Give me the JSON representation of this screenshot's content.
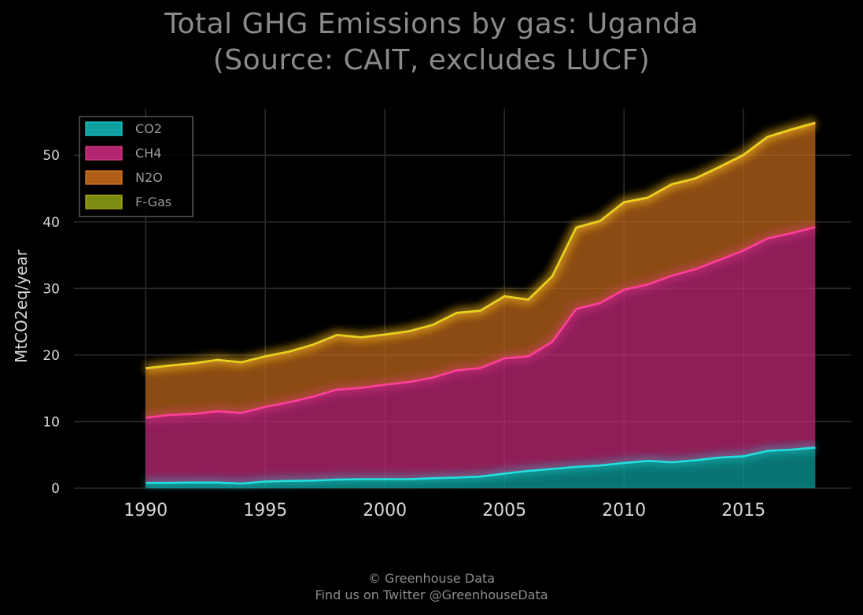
{
  "title": {
    "line1": "Total GHG Emissions by gas: Uganda",
    "line2": "(Source: CAIT, excludes LUCF)"
  },
  "footer": {
    "line1": "© Greenhouse Data",
    "line2": "Find us on Twitter @GreenhouseData"
  },
  "chart_data": {
    "type": "area",
    "stacked": true,
    "title": "Total GHG Emissions by gas: Uganda (Source: CAIT, excludes LUCF)",
    "xlabel": "",
    "ylabel": "MtCO2eq/year",
    "xlim": [
      1987,
      2019.5
    ],
    "ylim": [
      0,
      57
    ],
    "xticks": [
      1990,
      1995,
      2000,
      2005,
      2010,
      2015
    ],
    "yticks": [
      0,
      10,
      20,
      30,
      40,
      50
    ],
    "grid": true,
    "legend_position": "top-left",
    "x": [
      1990,
      1991,
      1992,
      1993,
      1994,
      1995,
      1996,
      1997,
      1998,
      1999,
      2000,
      2001,
      2002,
      2003,
      2004,
      2005,
      2006,
      2007,
      2008,
      2009,
      2010,
      2011,
      2012,
      2013,
      2014,
      2015,
      2016,
      2017,
      2018
    ],
    "series": [
      {
        "name": "CO2",
        "color": "#0e9f9f",
        "values": [
          0.8,
          0.8,
          0.85,
          0.85,
          0.7,
          1.0,
          1.1,
          1.15,
          1.3,
          1.35,
          1.35,
          1.35,
          1.5,
          1.6,
          1.75,
          2.2,
          2.6,
          2.9,
          3.2,
          3.4,
          3.8,
          4.1,
          3.9,
          4.2,
          4.6,
          4.8,
          5.6,
          5.8,
          6.1
        ]
      },
      {
        "name": "CH4",
        "color": "#c62a7a",
        "values": [
          9.8,
          10.2,
          10.3,
          10.7,
          10.6,
          11.2,
          11.8,
          12.6,
          13.5,
          13.7,
          14.2,
          14.6,
          15.1,
          16.1,
          16.3,
          17.3,
          17.2,
          19.1,
          23.7,
          24.4,
          26.0,
          26.5,
          28.0,
          28.7,
          29.7,
          30.9,
          31.9,
          32.5,
          33.1
        ]
      },
      {
        "name": "N2O",
        "color": "#c0681a",
        "values": [
          7.4,
          7.4,
          7.6,
          7.7,
          7.6,
          7.6,
          7.6,
          7.8,
          8.2,
          7.6,
          7.5,
          7.6,
          7.9,
          8.6,
          8.6,
          9.3,
          8.5,
          9.8,
          12.2,
          12.3,
          13.1,
          13.0,
          13.7,
          13.6,
          13.9,
          14.3,
          15.2,
          15.5,
          15.6
        ]
      },
      {
        "name": "F-Gas",
        "color": "#8a9a14",
        "values": [
          0.02,
          0.02,
          0.02,
          0.02,
          0.02,
          0.02,
          0.02,
          0.02,
          0.02,
          0.02,
          0.03,
          0.03,
          0.03,
          0.03,
          0.03,
          0.04,
          0.04,
          0.04,
          0.05,
          0.05,
          0.06,
          0.06,
          0.06,
          0.07,
          0.07,
          0.08,
          0.08,
          0.09,
          0.1
        ]
      }
    ]
  }
}
